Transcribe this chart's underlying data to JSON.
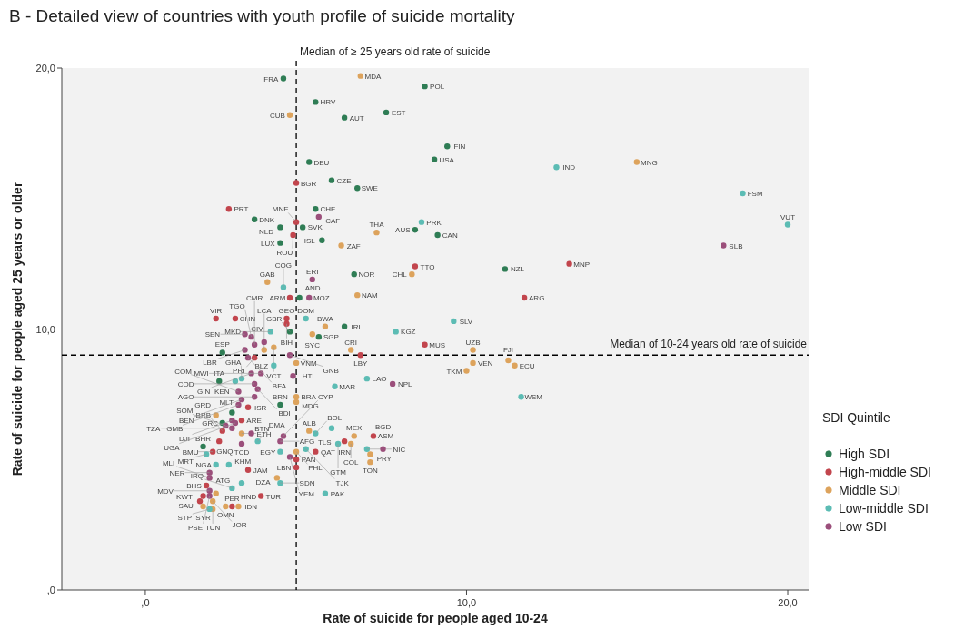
{
  "chart_data": {
    "type": "scatter",
    "title": "B - Detailed view of countries with youth profile of suicide mortality",
    "xlabel": "Rate of suicide for people aged 10-24",
    "ylabel": "Rate of suicide for people aged 25 years or older",
    "legend_title": "SDI Quintile",
    "legend": "right",
    "marker": "circle",
    "grid": false,
    "xlim": [
      -2.6,
      20.65
    ],
    "ylim": [
      0,
      20
    ],
    "xticks": [
      {
        "value": 0,
        "label": ",0"
      },
      {
        "value": 10,
        "label": "10,0"
      },
      {
        "value": 20,
        "label": "20,0"
      }
    ],
    "yticks": [
      {
        "value": 0,
        "label": ",0"
      },
      {
        "value": 10,
        "label": "10,0"
      },
      {
        "value": 20,
        "label": "20,0"
      }
    ],
    "ref_lines": [
      {
        "axis": "x",
        "value": 4.7,
        "label": "Median of ≥ 25 years old rate of suicide",
        "line_style": "dashed",
        "color": "#000000"
      },
      {
        "axis": "y",
        "value": 9.0,
        "label": "Median of 10-24 years old rate of suicide",
        "line_style": "dashed",
        "color": "#000000"
      }
    ],
    "series": [
      {
        "name": "High SDI",
        "color": "#2f7d55",
        "x": [
          4.3,
          8.7,
          5.3,
          6.2,
          7.5,
          9.4,
          9.0,
          5.1,
          5.8,
          6.6,
          5.3,
          3.4,
          9.1,
          8.4,
          4.2,
          4.9,
          4.2,
          5.5,
          11.2,
          6.5,
          6.2,
          5.4,
          4.8,
          4.5,
          2.4,
          2.3,
          2.7,
          2.4,
          4.2,
          1.8
        ],
        "values": [
          19.6,
          19.3,
          18.7,
          18.1,
          18.3,
          17.0,
          16.5,
          16.4,
          15.7,
          15.4,
          14.6,
          14.2,
          13.6,
          13.8,
          13.9,
          13.9,
          13.3,
          13.4,
          12.3,
          12.1,
          10.1,
          9.7,
          11.2,
          9.9,
          9.1,
          8.0,
          6.8,
          6.4,
          7.1,
          5.5
        ],
        "value_labels": [
          "FRA",
          "POL",
          "HRV",
          "AUT",
          "EST",
          "FIN",
          "USA",
          "DEU",
          "CZE",
          "SWE",
          "CHE",
          "DNK",
          "CAN",
          "AUS",
          "NLD",
          "SVK",
          "LUX",
          "ISL",
          "NZL",
          "NOR",
          "IRL",
          "SGP",
          "AND",
          "GBR",
          "ESP",
          "ITA",
          "MLT",
          "GRC",
          "BRN",
          "BHR"
        ]
      },
      {
        "name": "High-middle SDI",
        "color": "#c2454d",
        "x": [
          2.6,
          4.7,
          4.7,
          4.6,
          8.4,
          11.8,
          13.2,
          2.2,
          2.8,
          4.4,
          4.4,
          4.5,
          8.7,
          6.7,
          3.4,
          3.2,
          3.0,
          2.4,
          2.3,
          2.1,
          1.9,
          1.8,
          1.7,
          3.6,
          3.2,
          4.7,
          4.7,
          5.3,
          6.2,
          7.1,
          2.7
        ],
        "values": [
          14.6,
          15.6,
          14.1,
          13.6,
          12.4,
          11.2,
          12.5,
          10.4,
          10.4,
          10.4,
          10.2,
          11.2,
          9.4,
          9.0,
          8.9,
          7.0,
          6.5,
          6.1,
          5.7,
          5.3,
          4.0,
          3.6,
          3.4,
          3.6,
          4.6,
          5.0,
          4.7,
          5.3,
          5.7,
          5.9,
          3.2
        ],
        "value_labels": [
          "PRT",
          "BGR",
          "MNE",
          "ROU",
          "TTO",
          "ARG",
          "MNP",
          "VIR",
          "CHN",
          "GEO",
          "BIH",
          "ARM",
          "MUS",
          "LBY",
          "PRI",
          "ISR",
          "ARE",
          "BRB",
          "GNQ",
          "BMU",
          "BHS",
          "KWT",
          "SAU",
          "TUR",
          "JAM",
          "PAN",
          "LBN",
          "QAT",
          "IRN",
          "ASM",
          "PER"
        ]
      },
      {
        "name": "Middle SDI",
        "color": "#dda35c",
        "x": [
          6.7,
          4.5,
          15.3,
          7.2,
          6.1,
          8.3,
          3.8,
          6.6,
          5.6,
          5.2,
          6.4,
          4.0,
          3.7,
          4.7,
          10.2,
          10.2,
          10.0,
          11.3,
          11.5,
          4.7,
          4.7,
          2.2,
          3.0,
          5.1,
          4.7,
          6.5,
          6.4,
          7.0,
          7.0,
          4.1,
          2.9,
          2.2,
          1.8,
          2.5,
          2.1,
          2.1
        ],
        "values": [
          19.7,
          18.2,
          16.4,
          13.7,
          13.2,
          12.1,
          11.8,
          11.3,
          10.1,
          9.8,
          9.2,
          9.3,
          9.2,
          8.7,
          9.2,
          8.7,
          8.4,
          8.8,
          8.6,
          7.4,
          7.2,
          6.7,
          6.0,
          6.1,
          5.3,
          5.9,
          5.6,
          5.2,
          4.9,
          4.3,
          3.2,
          3.7,
          3.2,
          3.2,
          3.1,
          3.4
        ],
        "value_labels": [
          "MDA",
          "CUB",
          "MNG",
          "THA",
          "ZAF",
          "CHL",
          "GAB",
          "NAM",
          "BWA",
          "SYC",
          "CRI",
          "VCT",
          "LCA",
          "VNM",
          "UZB",
          "VEN",
          "TKM",
          "FJI",
          "ECU",
          "BRA",
          "MDG",
          "GRD",
          "ETH",
          "ALB",
          "PHL",
          "MEX",
          "COL",
          "PRY",
          "TON",
          "DZA",
          "IDN",
          "ATG",
          "SYR",
          "OMN",
          "TUN",
          "JOR"
        ]
      },
      {
        "name": "Low-middle SDI",
        "color": "#5cbcb4",
        "x": [
          12.8,
          18.6,
          20.0,
          8.6,
          9.6,
          7.8,
          11.7,
          6.9,
          5.9,
          4.3,
          5.0,
          3.9,
          4.0,
          2.8,
          3.0,
          5.3,
          5.8,
          6.0,
          6.9,
          5.6,
          4.2,
          4.2,
          2.6,
          2.2,
          1.9,
          2.7,
          3.0,
          2.0,
          3.5,
          5.0
        ],
        "values": [
          16.2,
          15.2,
          14.0,
          14.1,
          10.3,
          9.9,
          7.4,
          8.1,
          7.8,
          11.6,
          10.4,
          9.9,
          8.6,
          8.0,
          8.1,
          6.0,
          6.2,
          5.6,
          5.4,
          3.7,
          5.3,
          4.1,
          4.8,
          4.8,
          5.2,
          3.9,
          4.1,
          3.1,
          5.7,
          5.4
        ],
        "value_labels": [
          "IND",
          "FSM",
          "VUT",
          "PRK",
          "SLV",
          "KGZ",
          "WSM",
          "LAO",
          "MAR",
          "COG",
          "DOM",
          "MKD",
          "BLZ",
          "KEN",
          "GHA",
          "BOL",
          "TLS",
          "GTM",
          "NIC",
          "PAK",
          "EGY",
          "SDN",
          "KHM",
          "NGA",
          "MRT",
          "IRQ",
          "HND",
          "STP",
          "DMA",
          "TJK"
        ]
      },
      {
        "name": "Low SDI",
        "color": "#9b4f7b",
        "x": [
          18.0,
          5.4,
          5.2,
          5.1,
          7.7,
          7.4,
          4.6,
          3.3,
          3.1,
          3.7,
          3.4,
          3.1,
          3.2,
          4.5,
          3.6,
          3.3,
          3.4,
          3.5,
          3.4,
          2.9,
          3.0,
          2.9,
          2.7,
          2.8,
          2.5,
          2.7,
          3.3,
          4.3,
          4.2,
          3.0,
          4.5,
          2.0,
          2.0,
          2.0,
          2.0
        ],
        "values": [
          13.2,
          14.3,
          11.9,
          11.2,
          7.9,
          5.4,
          8.2,
          9.7,
          9.8,
          9.5,
          9.4,
          9.2,
          8.9,
          9.0,
          8.3,
          8.3,
          7.9,
          7.7,
          7.4,
          7.6,
          7.3,
          7.1,
          6.5,
          6.4,
          6.3,
          6.2,
          6.0,
          5.9,
          5.7,
          5.6,
          5.1,
          4.5,
          4.3,
          3.8,
          3.6
        ],
        "value_labels": [
          "SLB",
          "CAF",
          "ERI",
          "MOZ",
          "NPL",
          "BGD",
          "HTI",
          "TGO",
          "SEN",
          "CIV",
          "CMR",
          "LBR",
          "BFA",
          "GNB",
          "MWI",
          "GIN",
          "COD",
          "BDI",
          "AGO",
          "COM",
          "BEN",
          "GMB",
          "DJI",
          "UGA",
          "SOM",
          "TZA",
          "BTN",
          "CYP",
          "AFG",
          "TCD",
          "YEM",
          "NER",
          "MLI",
          "MDV",
          "PSE"
        ]
      }
    ]
  }
}
